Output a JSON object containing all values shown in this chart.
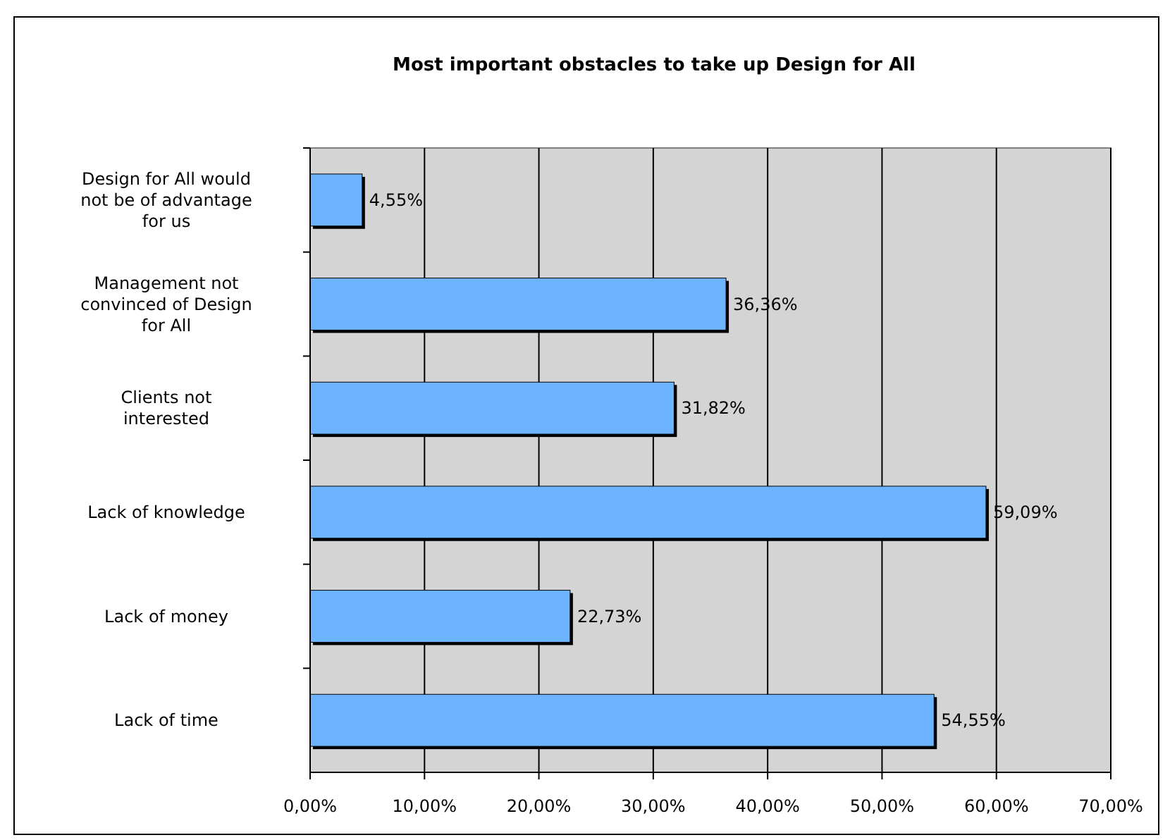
{
  "chart_data": {
    "type": "bar",
    "orientation": "horizontal",
    "title": "Most important obstacles to take up Design for All",
    "categories": [
      "Design for All would not be of advantage for us",
      "Management not convinced of Design for All",
      "Clients not interested",
      "Lack of knowledge",
      "Lack of money",
      "Lack of time"
    ],
    "values": [
      4.55,
      36.36,
      31.82,
      59.09,
      22.73,
      54.55
    ],
    "value_labels": [
      "4,55%",
      "36,36%",
      "31,82%",
      "59,09%",
      "22,73%",
      "54,55%"
    ],
    "color": "#6cb4ff",
    "xlim": [
      0,
      70
    ],
    "xticks": [
      {
        "value": 0,
        "label": "0,00%"
      },
      {
        "value": 10,
        "label": "10,00%"
      },
      {
        "value": 20,
        "label": "20,00%"
      },
      {
        "value": 30,
        "label": "30,00%"
      },
      {
        "value": 40,
        "label": "40,00%"
      },
      {
        "value": 50,
        "label": "50,00%"
      },
      {
        "value": 60,
        "label": "60,00%"
      },
      {
        "value": 70,
        "label": "70,00%"
      }
    ],
    "grid": "x"
  }
}
